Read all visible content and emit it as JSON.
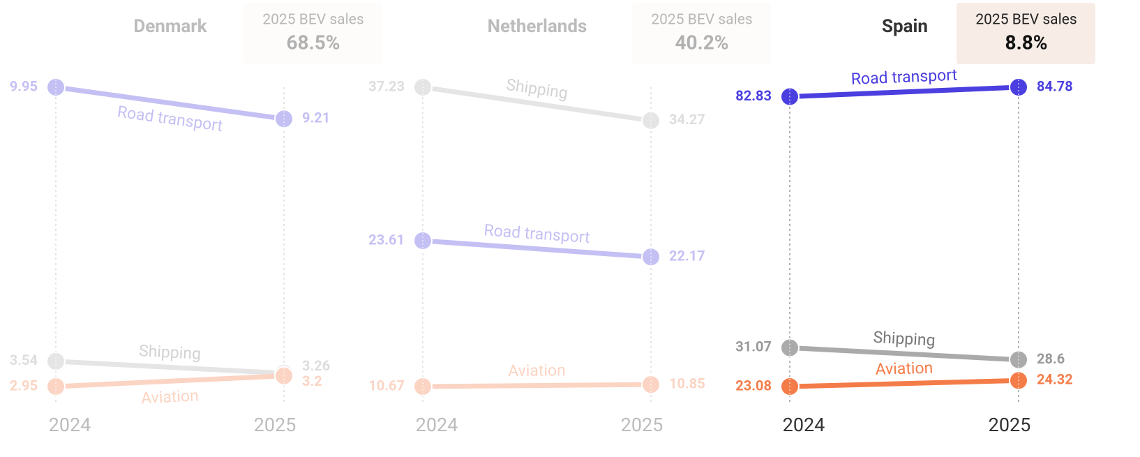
{
  "chart_data": [
    {
      "type": "slope",
      "title": "Denmark",
      "card_label": "2025 BEV sales",
      "card_value": "68.5%",
      "categories": [
        "2024",
        "2025"
      ],
      "ylim": [
        2.95,
        9.95
      ],
      "series": [
        {
          "name": "Road transport",
          "color": "#4b3fe0",
          "values": [
            9.95,
            9.21
          ]
        },
        {
          "name": "Shipping",
          "color": "#b0b0b0",
          "values": [
            3.54,
            3.26
          ]
        },
        {
          "name": "Aviation",
          "color": "#f47c48",
          "values": [
            2.95,
            3.2
          ]
        }
      ]
    },
    {
      "type": "slope",
      "title": "Netherlands",
      "card_label": "2025 BEV sales",
      "card_value": "40.2%",
      "categories": [
        "2024",
        "2025"
      ],
      "ylim": [
        10.67,
        37.23
      ],
      "series": [
        {
          "name": "Shipping",
          "color": "#b0b0b0",
          "values": [
            37.23,
            34.27
          ]
        },
        {
          "name": "Road transport",
          "color": "#4b3fe0",
          "values": [
            23.61,
            22.17
          ]
        },
        {
          "name": "Aviation",
          "color": "#f47c48",
          "values": [
            10.67,
            10.85
          ]
        }
      ]
    },
    {
      "type": "slope",
      "title": "Spain",
      "card_label": "2025 BEV sales",
      "card_value": "8.8%",
      "categories": [
        "2024",
        "2025"
      ],
      "ylim": [
        23.08,
        84.78
      ],
      "series": [
        {
          "name": "Road transport",
          "color": "#4b3fe0",
          "values": [
            82.83,
            84.78
          ]
        },
        {
          "name": "Shipping",
          "color": "#aaaaaa",
          "values": [
            31.07,
            28.6
          ]
        },
        {
          "name": "Aviation",
          "color": "#f47c48",
          "values": [
            23.08,
            24.32
          ]
        }
      ]
    }
  ]
}
